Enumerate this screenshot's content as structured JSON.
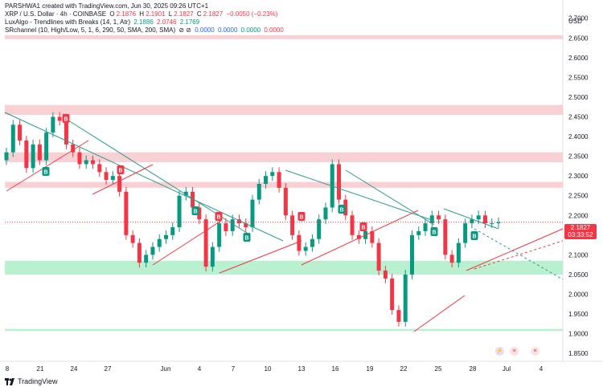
{
  "header": {
    "credit": "PARSHWA1 created with TradingView.com, Jun 30, 2025 09:26 UTC+1",
    "symbol": "XRP / U.S. Dollar · 4h · COINBASE",
    "o_label": "O",
    "o_val": "2.1876",
    "h_label": "H",
    "h_val": "2.1901",
    "l_label": "L",
    "l_val": "2.1827",
    "c_label": "C",
    "c_val": "2.1827",
    "change": "−0.0050 (−0.23%)",
    "lux_name": "LuxAlgo - Trendlines with Breaks (14, 1, Atr)",
    "lux_v1": "2.1886",
    "lux_v2": "2.0746",
    "lux_v3": "2.1769",
    "sr_name": "SRchannel (10, High/Low, 5, 1, 6, 290, 50, SMA, 200, SMA)",
    "sr_icons": "⊘ ⊘",
    "sr_v1": "0.0000",
    "sr_v2": "0.0000",
    "sr_v3": "0.0000",
    "sr_v4": "0.0000"
  },
  "axis": {
    "currency": "USD"
  },
  "price_tag": {
    "price": "2.1827",
    "countdown": "03:33:52"
  },
  "footer": {
    "brand": "TradingView",
    "logo_icon": "tradingview-logo-icon"
  },
  "events": [
    {
      "icon": "lightning-icon"
    },
    {
      "icon": "us-flag-icon"
    },
    {
      "icon": "us-flag-icon"
    }
  ],
  "colors": {
    "up": "#089981",
    "down": "#f23645",
    "resistance": "#f7c6c9",
    "support": "#a8ecc4",
    "trend_down": "#2a9d8f"
  },
  "chart_data": {
    "type": "candlestick",
    "interval": "4h",
    "ylim": [
      1.83,
      2.73
    ],
    "y_ticks": [
      "1.8500",
      "1.9000",
      "1.9500",
      "2.0000",
      "2.0500",
      "2.1000",
      "2.1500",
      "2.2000",
      "2.2500",
      "2.3000",
      "2.3500",
      "2.4000",
      "2.4500",
      "2.5000",
      "2.5500",
      "2.6000",
      "2.6500",
      "2.7000"
    ],
    "x_ticks": [
      "8",
      "21",
      "24",
      "27",
      "Jun",
      "4",
      "7",
      "10",
      "13",
      "16",
      "19",
      "22",
      "25",
      "28",
      "Jul",
      "4"
    ],
    "x_range": [
      "2025-05-17",
      "2025-07-05"
    ],
    "closes": [
      2.36,
      2.43,
      2.39,
      2.32,
      2.38,
      2.34,
      2.41,
      2.45,
      2.44,
      2.38,
      2.36,
      2.33,
      2.34,
      2.33,
      2.31,
      2.29,
      2.3,
      2.26,
      2.15,
      2.13,
      2.08,
      2.1,
      2.12,
      2.14,
      2.15,
      2.17,
      2.25,
      2.26,
      2.22,
      2.19,
      2.07,
      2.12,
      2.18,
      2.16,
      2.19,
      2.18,
      2.17,
      2.24,
      2.28,
      2.3,
      2.31,
      2.27,
      2.2,
      2.15,
      2.11,
      2.12,
      2.14,
      2.19,
      2.22,
      2.33,
      2.24,
      2.2,
      2.15,
      2.14,
      2.16,
      2.13,
      2.06,
      2.04,
      1.96,
      1.93,
      2.05,
      2.15,
      2.16,
      2.18,
      2.2,
      2.19,
      2.1,
      2.08,
      2.13,
      2.18,
      2.19,
      2.2,
      2.18,
      2.18,
      2.1827
    ],
    "resistance_zones": [
      [
        2.455,
        2.48
      ],
      [
        2.335,
        2.36
      ],
      [
        2.27,
        2.285
      ],
      [
        2.647,
        2.657
      ]
    ],
    "support_zones": [
      [
        2.05,
        2.085
      ],
      [
        1.907,
        1.912
      ]
    ],
    "current_price": 2.1827
  }
}
